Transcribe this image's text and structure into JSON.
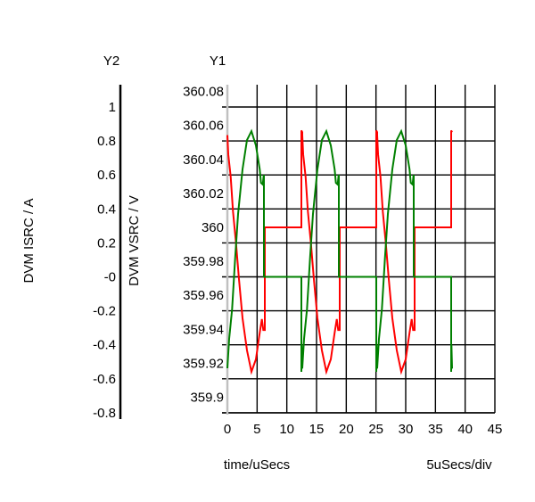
{
  "chart_data": {
    "type": "line",
    "x_axis": {
      "label": "time/uSecs",
      "scale_label": "5uSecs/div",
      "range": [
        0,
        45
      ],
      "ticks": [
        "0",
        "5",
        "10",
        "15",
        "20",
        "25",
        "30",
        "35",
        "40",
        "45"
      ]
    },
    "y1_axis": {
      "title": "Y1",
      "label": "DVM VSRC / V",
      "ticks": [
        {
          "value": 360.08,
          "label": "360.08"
        },
        {
          "value": 360.06,
          "label": "360.06"
        },
        {
          "value": 360.04,
          "label": "360.04"
        },
        {
          "value": 360.02,
          "label": "360.02"
        },
        {
          "value": 360.0,
          "label": "360"
        },
        {
          "value": 359.98,
          "label": "359.98"
        },
        {
          "value": 359.96,
          "label": "359.96"
        },
        {
          "value": 359.94,
          "label": "359.94"
        },
        {
          "value": 359.92,
          "label": "359.92"
        },
        {
          "value": 359.9,
          "label": "359.9"
        }
      ]
    },
    "y2_axis": {
      "title": "Y2",
      "label": "DVM ISRC / A",
      "ticks": [
        {
          "value": 1,
          "label": "1"
        },
        {
          "value": 0.8,
          "label": "0.8"
        },
        {
          "value": 0.6,
          "label": "0.6"
        },
        {
          "value": 0.4,
          "label": "0.4"
        },
        {
          "value": 0.2,
          "label": "0.2"
        },
        {
          "value": 0,
          "label": "-0"
        },
        {
          "value": -0.2,
          "label": "-0.2"
        },
        {
          "value": -0.4,
          "label": "-0.4"
        },
        {
          "value": -0.6,
          "label": "-0.6"
        },
        {
          "value": -0.8,
          "label": "-0.8"
        }
      ]
    },
    "grid": true,
    "series": [
      {
        "name": "DVM VSRC",
        "axis": "y1",
        "color": "#ff0000",
        "period_us": 12.6,
        "cycles": 3,
        "cycle_points": [
          [
            0,
            360.0543
          ],
          [
            0.15,
            360.043
          ],
          [
            0.55,
            360.03
          ],
          [
            0.95,
            360.0094
          ],
          [
            1.45,
            359.9906
          ],
          [
            1.95,
            359.9696
          ],
          [
            2.55,
            359.9465
          ],
          [
            3.3,
            359.9276
          ],
          [
            4.05,
            359.915
          ],
          [
            4.8,
            359.9223
          ],
          [
            5.45,
            359.938
          ],
          [
            5.8,
            359.946
          ],
          [
            6.05,
            359.9396
          ],
          [
            6.3,
            359.9396
          ],
          [
            6.3,
            360.0
          ],
          [
            12.45,
            360.0
          ],
          [
            12.45,
            360.057
          ],
          [
            12.6,
            360.056
          ]
        ]
      },
      {
        "name": "DVM ISRC",
        "axis": "y2",
        "color": "#008000",
        "period_us": 12.6,
        "cycles": 3,
        "cycle_points": [
          [
            0,
            -0.538
          ],
          [
            0.3,
            -0.365
          ],
          [
            0.8,
            -0.19
          ],
          [
            1.3,
            0.108
          ],
          [
            1.8,
            0.37
          ],
          [
            2.55,
            0.633
          ],
          [
            3.3,
            0.806
          ],
          [
            4.05,
            0.858
          ],
          [
            4.8,
            0.774
          ],
          [
            5.45,
            0.633
          ],
          [
            5.65,
            0.554
          ],
          [
            5.95,
            0.544
          ],
          [
            6.1,
            0.596
          ],
          [
            6.15,
            0.596
          ],
          [
            6.15,
            0
          ],
          [
            12.45,
            0
          ],
          [
            12.45,
            -0.559
          ],
          [
            12.5,
            -0.4
          ],
          [
            12.6,
            -0.54
          ]
        ]
      }
    ]
  }
}
